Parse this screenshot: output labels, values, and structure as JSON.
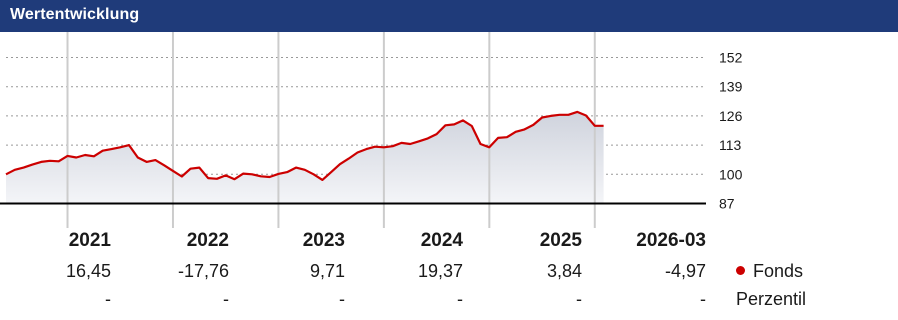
{
  "header": {
    "title": "Wertentwicklung"
  },
  "chart_data": {
    "type": "line",
    "title": "",
    "xlabel": "",
    "ylabel": "",
    "ylim": [
      87,
      152
    ],
    "yticks": [
      87,
      100,
      113,
      126,
      139,
      152
    ],
    "grid": true,
    "colors": {
      "line": "#cc0000",
      "fill_top": "#cfd3dd",
      "fill_bottom": "#f4f5f8",
      "grid": "#cccccc",
      "baseline": "#000000"
    },
    "x": [
      "2020-06",
      "2020-07",
      "2020-08",
      "2020-09",
      "2020-10",
      "2020-11",
      "2020-12",
      "2021-01",
      "2021-02",
      "2021-03",
      "2021-04",
      "2021-05",
      "2021-06",
      "2021-07",
      "2021-08",
      "2021-09",
      "2021-10",
      "2021-11",
      "2021-12",
      "2022-01",
      "2022-02",
      "2022-03",
      "2022-04",
      "2022-05",
      "2022-06",
      "2022-07",
      "2022-08",
      "2022-09",
      "2022-10",
      "2022-11",
      "2022-12",
      "2023-01",
      "2023-02",
      "2023-03",
      "2023-04",
      "2023-05",
      "2023-06",
      "2023-07",
      "2023-08",
      "2023-09",
      "2023-10",
      "2023-11",
      "2023-12",
      "2024-01",
      "2024-02",
      "2024-03",
      "2024-04",
      "2024-05",
      "2024-06",
      "2024-07",
      "2024-08",
      "2024-09",
      "2024-10",
      "2024-11",
      "2024-12",
      "2025-01",
      "2025-02",
      "2025-03",
      "2025-04",
      "2025-05",
      "2025-06",
      "2025-07",
      "2025-08",
      "2025-09",
      "2025-10",
      "2025-11",
      "2025-12",
      "2026-01",
      "2026-02"
    ],
    "series": [
      {
        "name": "Fonds",
        "values": [
          100.0,
          102.0,
          103.0,
          104.3,
          105.5,
          106.0,
          105.8,
          108.2,
          107.5,
          108.6,
          108.0,
          110.5,
          111.2,
          112.0,
          113.0,
          107.5,
          105.5,
          106.3,
          104.0,
          101.5,
          99.0,
          102.5,
          103.0,
          98.3,
          98.0,
          99.5,
          97.8,
          100.3,
          100.0,
          99.1,
          98.8,
          100.2,
          101.0,
          103.0,
          102.0,
          100.0,
          97.5,
          101.0,
          104.5,
          107.0,
          109.7,
          111.2,
          112.3,
          112.0,
          112.5,
          114.0,
          113.5,
          114.7,
          116.0,
          117.9,
          121.8,
          122.2,
          124.0,
          121.5,
          113.5,
          112.0,
          116.2,
          116.5,
          118.9,
          120.0,
          122.0,
          125.3,
          126.0,
          126.5,
          126.5,
          127.8,
          126.2,
          121.6,
          121.6
        ]
      }
    ],
    "years": [
      {
        "label": "2021",
        "fonds": "16,45",
        "perzentil": "-"
      },
      {
        "label": "2022",
        "fonds": "-17,76",
        "perzentil": "-"
      },
      {
        "label": "2023",
        "fonds": "9,71",
        "perzentil": "-"
      },
      {
        "label": "2024",
        "fonds": "19,37",
        "perzentil": "-"
      },
      {
        "label": "2025",
        "fonds": "3,84",
        "perzentil": "-"
      },
      {
        "label": "2026-03",
        "fonds": "-4,97",
        "perzentil": "-"
      }
    ],
    "legend": {
      "fonds_label": "Fonds",
      "perzentil_label": "Perzentil",
      "fonds_color": "#cc0000"
    }
  }
}
